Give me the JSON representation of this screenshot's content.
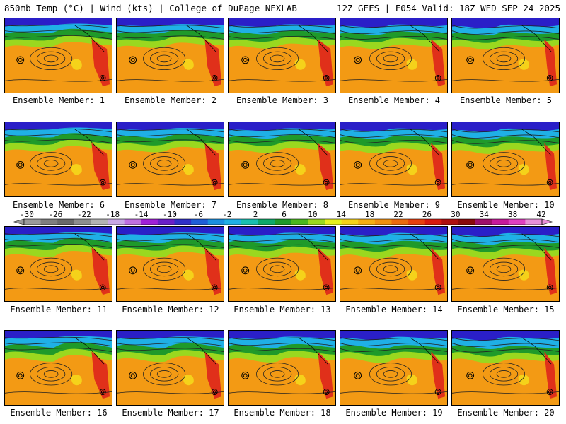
{
  "header": {
    "left": "850mb Temp (°C) | Wind (kts) | College of DuPage NEXLAB",
    "right": "12Z GEFS | F054 Valid: 18Z WED SEP 24 2025"
  },
  "label_prefix": "Ensemble Member:",
  "members": [
    {
      "number": "1"
    },
    {
      "number": "2"
    },
    {
      "number": "3"
    },
    {
      "number": "4"
    },
    {
      "number": "5"
    },
    {
      "number": "6"
    },
    {
      "number": "7"
    },
    {
      "number": "8"
    },
    {
      "number": "9"
    },
    {
      "number": "10"
    },
    {
      "number": "11"
    },
    {
      "number": "12"
    },
    {
      "number": "13"
    },
    {
      "number": "14"
    },
    {
      "number": "15"
    },
    {
      "number": "16"
    },
    {
      "number": "17"
    },
    {
      "number": "18"
    },
    {
      "number": "19"
    },
    {
      "number": "20"
    }
  ],
  "colorbar": {
    "tick_labels": [
      "-30",
      "-26",
      "-22",
      "-18",
      "-14",
      "-10",
      "-6",
      "-2",
      "2",
      "6",
      "10",
      "14",
      "18",
      "22",
      "26",
      "30",
      "34",
      "38",
      "42"
    ],
    "colors": [
      "#9a9a9a",
      "#7f7f7f",
      "#6a6a6a",
      "#8e8e8e",
      "#b3b3b3",
      "#c9a8e6",
      "#c070e0",
      "#a020d8",
      "#6a1fc8",
      "#3030c8",
      "#1f5fd8",
      "#1a8fe0",
      "#1fb0e6",
      "#19c0b0",
      "#0fa86a",
      "#1f9a2a",
      "#4ab81f",
      "#9ad81f",
      "#e6f01f",
      "#f5d21a",
      "#f5ae12",
      "#f09010",
      "#ec6a10",
      "#e84010",
      "#d81a10",
      "#b01010",
      "#8a0a0a",
      "#a0106a",
      "#c81a9a",
      "#e040c0",
      "#e890d8"
    ]
  },
  "map_palette": {
    "cold_north": "#2a1fc8",
    "cyan": "#1fb0e6",
    "green": "#1f9a2a",
    "light_green": "#9ad81f",
    "yellow": "#f5d21a",
    "orange": "#f39a14",
    "red_heat": "#e0301a",
    "contour": "#222222"
  }
}
